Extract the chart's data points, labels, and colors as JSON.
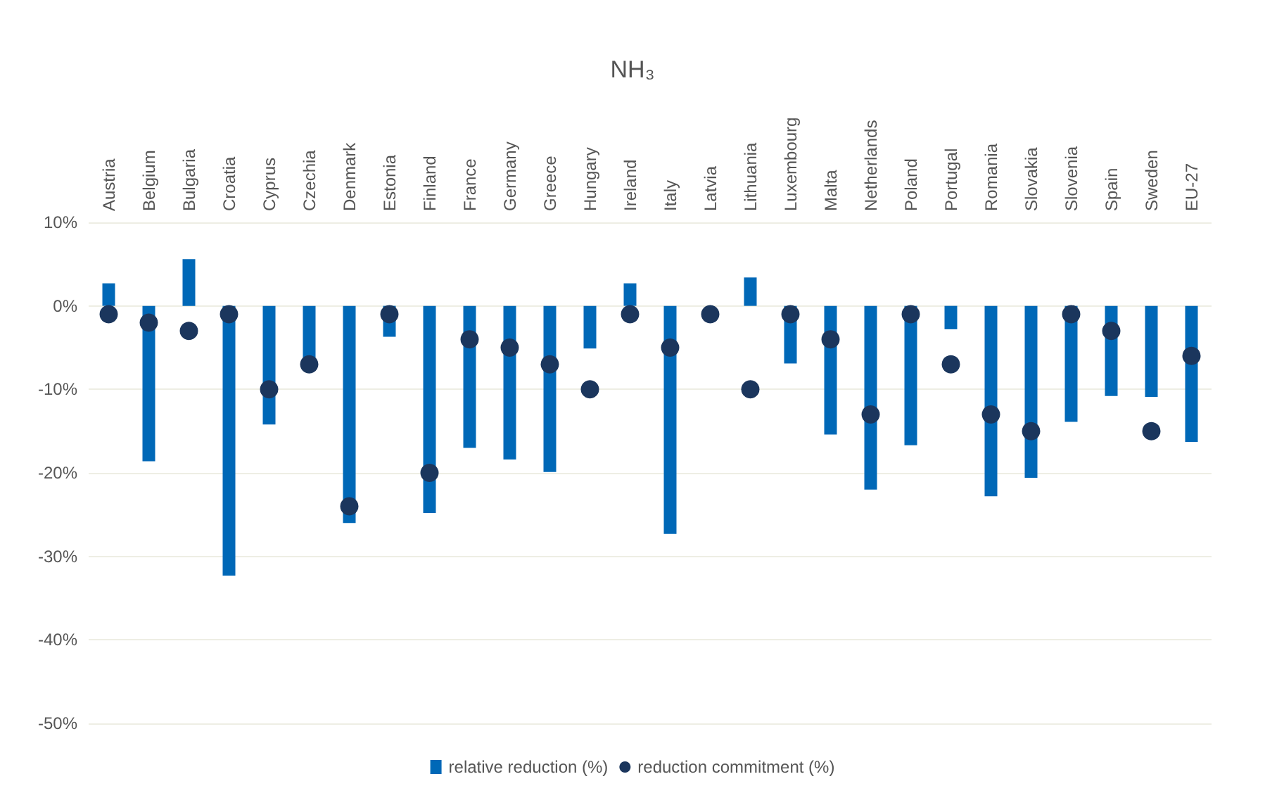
{
  "chart_data": {
    "type": "bar",
    "title": "NH₃",
    "categories": [
      "Austria",
      "Belgium",
      "Bulgaria",
      "Croatia",
      "Cyprus",
      "Czechia",
      "Denmark",
      "Estonia",
      "Finland",
      "France",
      "Germany",
      "Greece",
      "Hungary",
      "Ireland",
      "Italy",
      "Latvia",
      "Lithuania",
      "Luxembourg",
      "Malta",
      "Netherlands",
      "Poland",
      "Portugal",
      "Romania",
      "Slovakia",
      "Slovenia",
      "Spain",
      "Sweden",
      "EU-27"
    ],
    "series": [
      {
        "name": "relative reduction (%)",
        "color": "#0068b7",
        "values": [
          2.7,
          -18.6,
          5.6,
          -32.3,
          -14.2,
          -6.2,
          -26,
          -3.7,
          -24.8,
          -17,
          -18.4,
          -19.9,
          -5.1,
          2.7,
          -27.3,
          0,
          3.4,
          -6.9,
          -15.4,
          -22,
          -16.7,
          -2.8,
          -22.8,
          -20.6,
          -13.9,
          -10.8,
          -10.9,
          -16.3
        ]
      },
      {
        "name": "reduction commitment (%)",
        "type": "scatter",
        "color": "#1b365d",
        "values": [
          -1,
          -2,
          -3,
          -1,
          -10,
          -7,
          -24,
          -1,
          -20,
          -4,
          -5,
          -7,
          -10,
          -1,
          -5,
          -1,
          -10,
          -1,
          -4,
          -13,
          -1,
          -7,
          -13,
          -15,
          -1,
          -3,
          -15,
          -6
        ]
      }
    ],
    "ylim": [
      -50,
      10
    ],
    "yticks": [
      {
        "value": -50,
        "label": "-50%"
      },
      {
        "value": -40,
        "label": "-40%"
      },
      {
        "value": -30,
        "label": "-30%"
      },
      {
        "value": -20,
        "label": "-20%"
      },
      {
        "value": -10,
        "label": "-10%"
      },
      {
        "value": 0,
        "label": "0%"
      },
      {
        "value": 10,
        "label": "10%"
      }
    ],
    "grid": "y",
    "legend": "bottom",
    "marker": "circle"
  }
}
